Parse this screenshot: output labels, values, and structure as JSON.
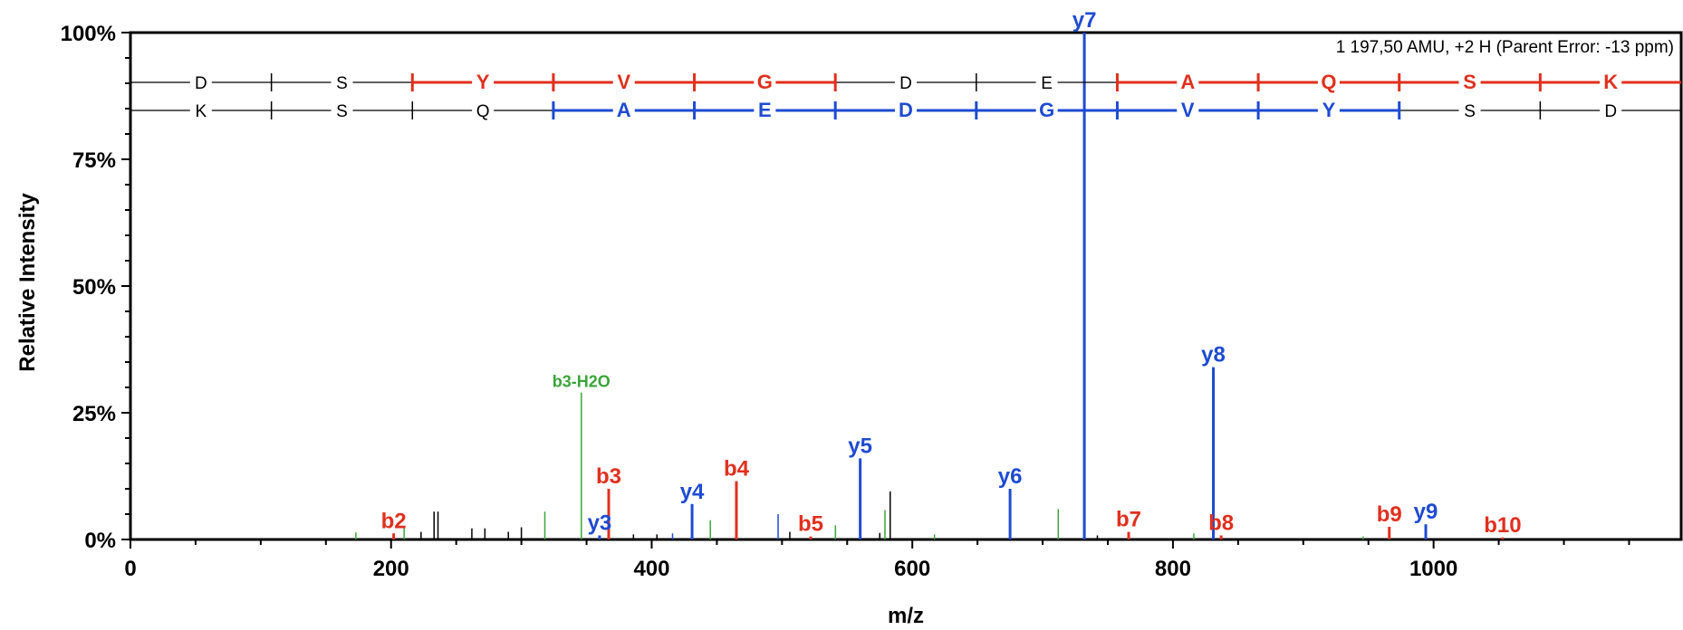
{
  "chart_data": {
    "type": "bar",
    "ylabel": "Relative Intensity",
    "xlabel": "m/z",
    "annotation": "1 197,50 AMU, +2 H (Parent Error: -13 ppm)",
    "xlim": [
      0,
      1190
    ],
    "ylim": [
      0,
      100
    ],
    "x_ticks": [
      {
        "value": 0,
        "label": "0"
      },
      {
        "value": 200,
        "label": "200"
      },
      {
        "value": 400,
        "label": "400"
      },
      {
        "value": 600,
        "label": "600"
      },
      {
        "value": 800,
        "label": "800"
      },
      {
        "value": 1000,
        "label": "1000"
      }
    ],
    "y_ticks": [
      {
        "value": 0,
        "label": "0%"
      },
      {
        "value": 25,
        "label": "25%"
      },
      {
        "value": 50,
        "label": "50%"
      },
      {
        "value": 75,
        "label": "75%"
      },
      {
        "value": 100,
        "label": "100%"
      }
    ],
    "colors": {
      "b_ion": "#e0301e",
      "y_ion": "#1e4bd2",
      "neutral_loss": "#3aa63a",
      "unassigned": "#000000"
    },
    "labeled_peaks": [
      {
        "label": "b2",
        "mz": 202,
        "intensity": 1.2,
        "series": "b"
      },
      {
        "label": "b3",
        "mz": 367,
        "intensity": 10,
        "series": "b"
      },
      {
        "label": "b4",
        "mz": 465,
        "intensity": 11.5,
        "series": "b"
      },
      {
        "label": "b5",
        "mz": 522,
        "intensity": 0.6,
        "series": "b"
      },
      {
        "label": "b7",
        "mz": 766,
        "intensity": 1.5,
        "series": "b"
      },
      {
        "label": "b8",
        "mz": 837,
        "intensity": 0.8,
        "series": "b"
      },
      {
        "label": "b9",
        "mz": 966,
        "intensity": 2.5,
        "series": "b"
      },
      {
        "label": "b10",
        "mz": 1053,
        "intensity": 0.4,
        "series": "b"
      },
      {
        "label": "y3",
        "mz": 360,
        "intensity": 0.8,
        "series": "y"
      },
      {
        "label": "y4",
        "mz": 431,
        "intensity": 7,
        "series": "y"
      },
      {
        "label": "y5",
        "mz": 560,
        "intensity": 16,
        "series": "y"
      },
      {
        "label": "y6",
        "mz": 675,
        "intensity": 10,
        "series": "y"
      },
      {
        "label": "y7",
        "mz": 732,
        "intensity": 100,
        "series": "y"
      },
      {
        "label": "y8",
        "mz": 831,
        "intensity": 34,
        "series": "y"
      },
      {
        "label": "y9",
        "mz": 994,
        "intensity": 3,
        "series": "y"
      },
      {
        "label": "b3-H2O",
        "mz": 346,
        "intensity": 29,
        "series": "neutral"
      }
    ],
    "minor_peaks": [
      {
        "mz": 173,
        "intensity": 1.4,
        "series": "neutral"
      },
      {
        "mz": 210,
        "intensity": 2.5,
        "series": "neutral"
      },
      {
        "mz": 223,
        "intensity": 1.5,
        "series": "unassigned"
      },
      {
        "mz": 233,
        "intensity": 5.5,
        "series": "unassigned"
      },
      {
        "mz": 236,
        "intensity": 5.5,
        "series": "unassigned"
      },
      {
        "mz": 262,
        "intensity": 2.2,
        "series": "unassigned"
      },
      {
        "mz": 272,
        "intensity": 2.2,
        "series": "unassigned"
      },
      {
        "mz": 290,
        "intensity": 1.5,
        "series": "unassigned"
      },
      {
        "mz": 300,
        "intensity": 2.4,
        "series": "unassigned"
      },
      {
        "mz": 318,
        "intensity": 5.5,
        "series": "neutral"
      },
      {
        "mz": 386,
        "intensity": 1.0,
        "series": "unassigned"
      },
      {
        "mz": 404,
        "intensity": 1.0,
        "series": "unassigned"
      },
      {
        "mz": 416,
        "intensity": 1.2,
        "series": "y"
      },
      {
        "mz": 445,
        "intensity": 3.8,
        "series": "neutral"
      },
      {
        "mz": 497,
        "intensity": 5,
        "series": "y"
      },
      {
        "mz": 506,
        "intensity": 1.5,
        "series": "unassigned"
      },
      {
        "mz": 541,
        "intensity": 2.8,
        "series": "neutral"
      },
      {
        "mz": 575,
        "intensity": 1.3,
        "series": "unassigned"
      },
      {
        "mz": 579,
        "intensity": 5.8,
        "series": "neutral"
      },
      {
        "mz": 583,
        "intensity": 9.5,
        "series": "unassigned"
      },
      {
        "mz": 617,
        "intensity": 1.0,
        "series": "neutral"
      },
      {
        "mz": 712,
        "intensity": 6,
        "series": "neutral"
      },
      {
        "mz": 742,
        "intensity": 0.8,
        "series": "unassigned"
      },
      {
        "mz": 816,
        "intensity": 1.2,
        "series": "neutral"
      },
      {
        "mz": 946,
        "intensity": 0.6,
        "series": "neutral"
      }
    ],
    "sequence_top": [
      {
        "letter": "D",
        "highlighted": false
      },
      {
        "letter": "S",
        "highlighted": false
      },
      {
        "letter": "Y",
        "highlighted": true
      },
      {
        "letter": "V",
        "highlighted": true
      },
      {
        "letter": "G",
        "highlighted": true
      },
      {
        "letter": "D",
        "highlighted": false
      },
      {
        "letter": "E",
        "highlighted": false
      },
      {
        "letter": "A",
        "highlighted": true
      },
      {
        "letter": "Q",
        "highlighted": true
      },
      {
        "letter": "S",
        "highlighted": true
      },
      {
        "letter": "K",
        "highlighted": true
      }
    ],
    "sequence_bottom": [
      {
        "letter": "K",
        "highlighted": false
      },
      {
        "letter": "S",
        "highlighted": false
      },
      {
        "letter": "Q",
        "highlighted": false
      },
      {
        "letter": "A",
        "highlighted": true
      },
      {
        "letter": "E",
        "highlighted": true
      },
      {
        "letter": "D",
        "highlighted": true
      },
      {
        "letter": "G",
        "highlighted": true
      },
      {
        "letter": "V",
        "highlighted": true
      },
      {
        "letter": "Y",
        "highlighted": true
      },
      {
        "letter": "S",
        "highlighted": false
      },
      {
        "letter": "D",
        "highlighted": false
      }
    ]
  }
}
